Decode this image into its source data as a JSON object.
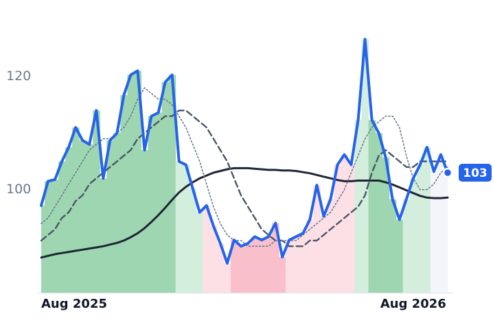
{
  "chart_data": {
    "type": "line",
    "categories": [
      "Aug 2025",
      null,
      null,
      null,
      null,
      null,
      null,
      null,
      null,
      null,
      null,
      null,
      null,
      null,
      null,
      null,
      null,
      null,
      null,
      null,
      null,
      null,
      null,
      null,
      null,
      null,
      null,
      null,
      null,
      null,
      null,
      null,
      null,
      null,
      null,
      null,
      null,
      null,
      null,
      null,
      null,
      null,
      null,
      null,
      null,
      null,
      null,
      null,
      null,
      null,
      null,
      null,
      null,
      null,
      "Aug 2026",
      null,
      null,
      null,
      null,
      null
    ],
    "series": [
      {
        "color": "#2563eb",
        "line_style": "solid",
        "values": [
          97.2,
          101.5,
          101.8,
          105,
          107.5,
          111,
          108.7,
          108,
          114,
          102,
          108.7,
          110,
          116.7,
          120.3,
          121,
          107,
          113,
          113.6,
          119,
          120.3,
          105,
          104.4,
          100.2,
          96,
          97.2,
          93.6,
          90.5,
          87,
          91.1,
          90,
          90.5,
          91.7,
          91.1,
          91.7,
          94.1,
          88.1,
          91.1,
          91.7,
          92.3,
          94.7,
          100.8,
          95.3,
          98.3,
          104.4,
          106.2,
          104.4,
          112.3,
          126.6,
          112.3,
          110,
          105.7,
          98.3,
          94.7,
          98.3,
          102,
          104.4,
          107.5,
          103.2,
          106.2,
          103
        ],
        "fill_colors": [
          "#9dd6b0",
          "#9dd6b0",
          "#9dd6b0",
          "#9dd6b0",
          "#9dd6b0",
          "#9dd6b0",
          "#9dd6b0",
          "#9dd6b0",
          "#9dd6b0",
          "#9dd6b0",
          "#9dd6b0",
          "#9dd6b0",
          "#9dd6b0",
          "#9dd6b0",
          "#9dd6b0",
          "#9dd6b0",
          "#9dd6b0",
          "#9dd6b0",
          "#9dd6b0",
          "#9dd6b0",
          "#d4eedd",
          "#d4eedd",
          "#d4eedd",
          "#d4eedd",
          "#fde0e6",
          "#fde0e6",
          "#fde0e6",
          "#fde0e6",
          "#f9c0cb",
          "#f9c0cb",
          "#f9c0cb",
          "#f9c0cb",
          "#f9c0cb",
          "#f9c0cb",
          "#f9c0cb",
          "#f9c0cb",
          "#fde0e6",
          "#fde0e6",
          "#fde0e6",
          "#fde0e6",
          "#fde0e6",
          "#fde0e6",
          "#fde0e6",
          "#fde0e6",
          "#fde0e6",
          "#fde0e6",
          "#d4eedd",
          "#d4eedd",
          "#9dd6b0",
          "#9dd6b0",
          "#9dd6b0",
          "#9dd6b0",
          "#9dd6b0",
          "#d4eedd",
          "#d4eedd",
          "#d4eedd",
          "#d4eedd",
          "#f3f5fa",
          "#f3f5fa",
          "#f3f5fa"
        ]
      },
      {
        "color": "#6b7a8f",
        "line_style": "dotted",
        "values": [
          94,
          95,
          97,
          99,
          101,
          103,
          105,
          107,
          108,
          109,
          109,
          110,
          111,
          113,
          116,
          118,
          117,
          116,
          116,
          115,
          113,
          111,
          108,
          105,
          101,
          97,
          94,
          92,
          91,
          91,
          90,
          90,
          90,
          90,
          91,
          91,
          91,
          91,
          92,
          93,
          94,
          95,
          96,
          98,
          100,
          103,
          106,
          109,
          111,
          112,
          113,
          113,
          111,
          106,
          102,
          100,
          100,
          101,
          103,
          104
        ]
      },
      {
        "color": "#4a5568",
        "line_style": "dashed",
        "values": [
          91,
          92,
          93,
          95,
          96,
          98,
          99,
          101,
          102,
          103,
          104,
          105,
          106,
          107,
          109,
          110,
          111,
          112,
          113,
          113,
          114,
          114,
          113,
          112,
          111,
          109,
          107,
          105,
          102,
          99,
          97,
          95,
          93,
          92,
          91,
          91,
          90,
          90,
          90,
          91,
          91,
          92,
          93,
          94,
          95,
          96,
          97,
          99,
          103,
          106,
          107,
          106,
          105,
          104,
          104,
          105,
          105,
          105,
          105,
          105
        ]
      },
      {
        "color": "#1e2535",
        "line_style": "solid",
        "values": [
          88,
          88.3,
          88.6,
          88.8,
          89,
          89.2,
          89.4,
          89.6,
          89.8,
          90,
          90.3,
          90.6,
          91,
          91.6,
          92.3,
          93.2,
          94.3,
          95.5,
          96.8,
          98.2,
          99.5,
          100.5,
          101.3,
          102,
          102.5,
          103,
          103.3,
          103.6,
          103.8,
          103.8,
          103.8,
          103.7,
          103.6,
          103.5,
          103.5,
          103.4,
          103.4,
          103.3,
          103.1,
          102.9,
          102.6,
          102.3,
          102,
          101.7,
          101.5,
          101.5,
          101.6,
          101.6,
          101.6,
          101.6,
          101.3,
          100.9,
          100.4,
          99.9,
          99.4,
          98.9,
          98.6,
          98.5,
          98.5,
          98.6
        ]
      }
    ],
    "ylim": [
      81.8,
      131.1
    ],
    "yticks": [
      100,
      120
    ],
    "grid": false
  }
}
